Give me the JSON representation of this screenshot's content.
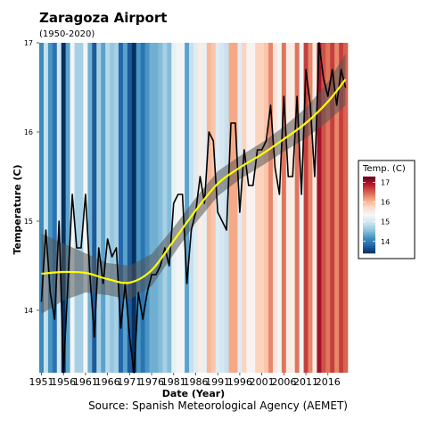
{
  "chart_data": {
    "type": "line",
    "title": "Zaragoza Airport",
    "subtitle": "(1950-2020)",
    "xlabel": "Date (Year)",
    "ylabel": "Temperature (C)",
    "caption": "Source: Spanish Meteorological Agency (AEMET)",
    "x_ticks": [
      "1951",
      "1956",
      "1961",
      "1966",
      "1971",
      "1976",
      "1981",
      "1986",
      "1991",
      "1996",
      "2001",
      "2006",
      "2011",
      "2016"
    ],
    "y_ticks": [
      "14",
      "15",
      "16",
      "17"
    ],
    "xlim": [
      1950.5,
      2020.5
    ],
    "ylim": [
      13.3,
      17.0
    ],
    "legend": {
      "title": "Temp. (C)",
      "labels": [
        "17",
        "16",
        "15",
        "14"
      ],
      "range": [
        13.4,
        17.3
      ],
      "placement": "right"
    },
    "colors": {
      "line": "#000000",
      "trend": "#ffff00",
      "band": "#555555",
      "scale": [
        "#053061",
        "#2166ac",
        "#4393c3",
        "#92c5de",
        "#d1e5f0",
        "#f7f7f7",
        "#fddbc7",
        "#f4a582",
        "#d6604d",
        "#b2182b",
        "#67001f"
      ]
    },
    "series": [
      {
        "x": [
          1951,
          1952,
          1953,
          1954,
          1955,
          1956,
          1957,
          1958,
          1959,
          1960,
          1961,
          1962,
          1963,
          1964,
          1965,
          1966,
          1967,
          1968,
          1969,
          1970,
          1971,
          1972,
          1973,
          1974,
          1975,
          1976,
          1977,
          1978,
          1979,
          1980,
          1981,
          1982,
          1983,
          1984,
          1985,
          1986,
          1987,
          1988,
          1989,
          1990,
          1991,
          1992,
          1993,
          1994,
          1995,
          1996,
          1997,
          1998,
          1999,
          2000,
          2001,
          2002,
          2003,
          2004,
          2005,
          2006,
          2007,
          2008,
          2009,
          2010,
          2011,
          2012,
          2013,
          2014,
          2015,
          2016,
          2017,
          2018,
          2019,
          2020
        ],
        "values": [
          14.1,
          14.9,
          14.2,
          13.9,
          15.0,
          13.3,
          14.3,
          15.3,
          14.7,
          14.7,
          15.3,
          14.4,
          13.7,
          14.7,
          14.3,
          14.8,
          14.6,
          14.7,
          13.8,
          14.3,
          13.7,
          13.3,
          14.2,
          13.9,
          14.2,
          14.4,
          14.4,
          14.5,
          14.7,
          14.5,
          15.2,
          15.3,
          15.3,
          14.3,
          14.9,
          15.1,
          15.5,
          15.2,
          16.0,
          15.9,
          15.1,
          15.0,
          14.9,
          16.1,
          16.1,
          15.1,
          15.8,
          15.4,
          15.4,
          15.8,
          15.8,
          15.9,
          16.3,
          15.6,
          15.3,
          16.4,
          15.5,
          15.5,
          16.4,
          15.3,
          16.7,
          16.3,
          15.5,
          17.0,
          16.6,
          16.4,
          16.7,
          16.3,
          16.7,
          16.5
        ]
      }
    ],
    "trend": {
      "x": [
        1951,
        1956,
        1961,
        1966,
        1971,
        1976,
        1981,
        1986,
        1991,
        1996,
        2001,
        2006,
        2011,
        2016,
        2020
      ],
      "values": [
        14.41,
        14.43,
        14.42,
        14.35,
        14.31,
        14.45,
        14.78,
        15.12,
        15.42,
        15.6,
        15.75,
        15.92,
        16.1,
        16.34,
        16.59
      ],
      "band_halfwidth": [
        0.45,
        0.32,
        0.22,
        0.18,
        0.19,
        0.18,
        0.15,
        0.14,
        0.14,
        0.13,
        0.13,
        0.14,
        0.17,
        0.22,
        0.29
      ]
    }
  }
}
